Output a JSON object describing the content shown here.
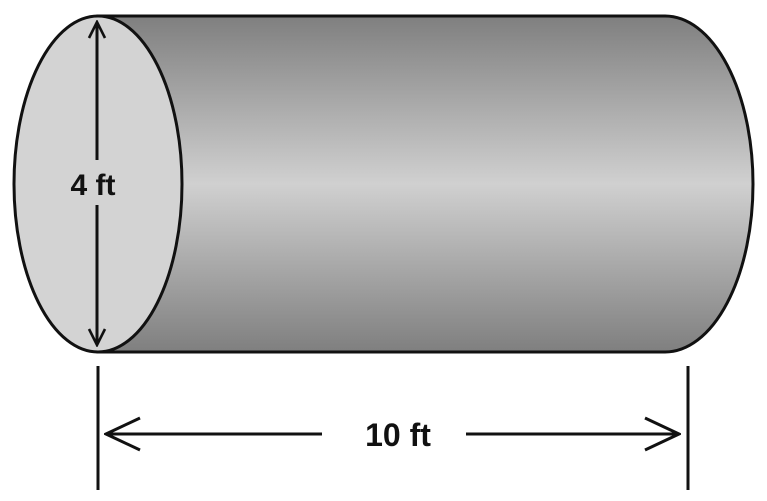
{
  "diagram": {
    "diameter_label": "4 ft",
    "length_label": "10 ft",
    "colors": {
      "outline": "#111111",
      "end_face": "#d3d3d3",
      "body_dark": "#7f7f7f",
      "body_light": "#d0d0d0"
    }
  }
}
